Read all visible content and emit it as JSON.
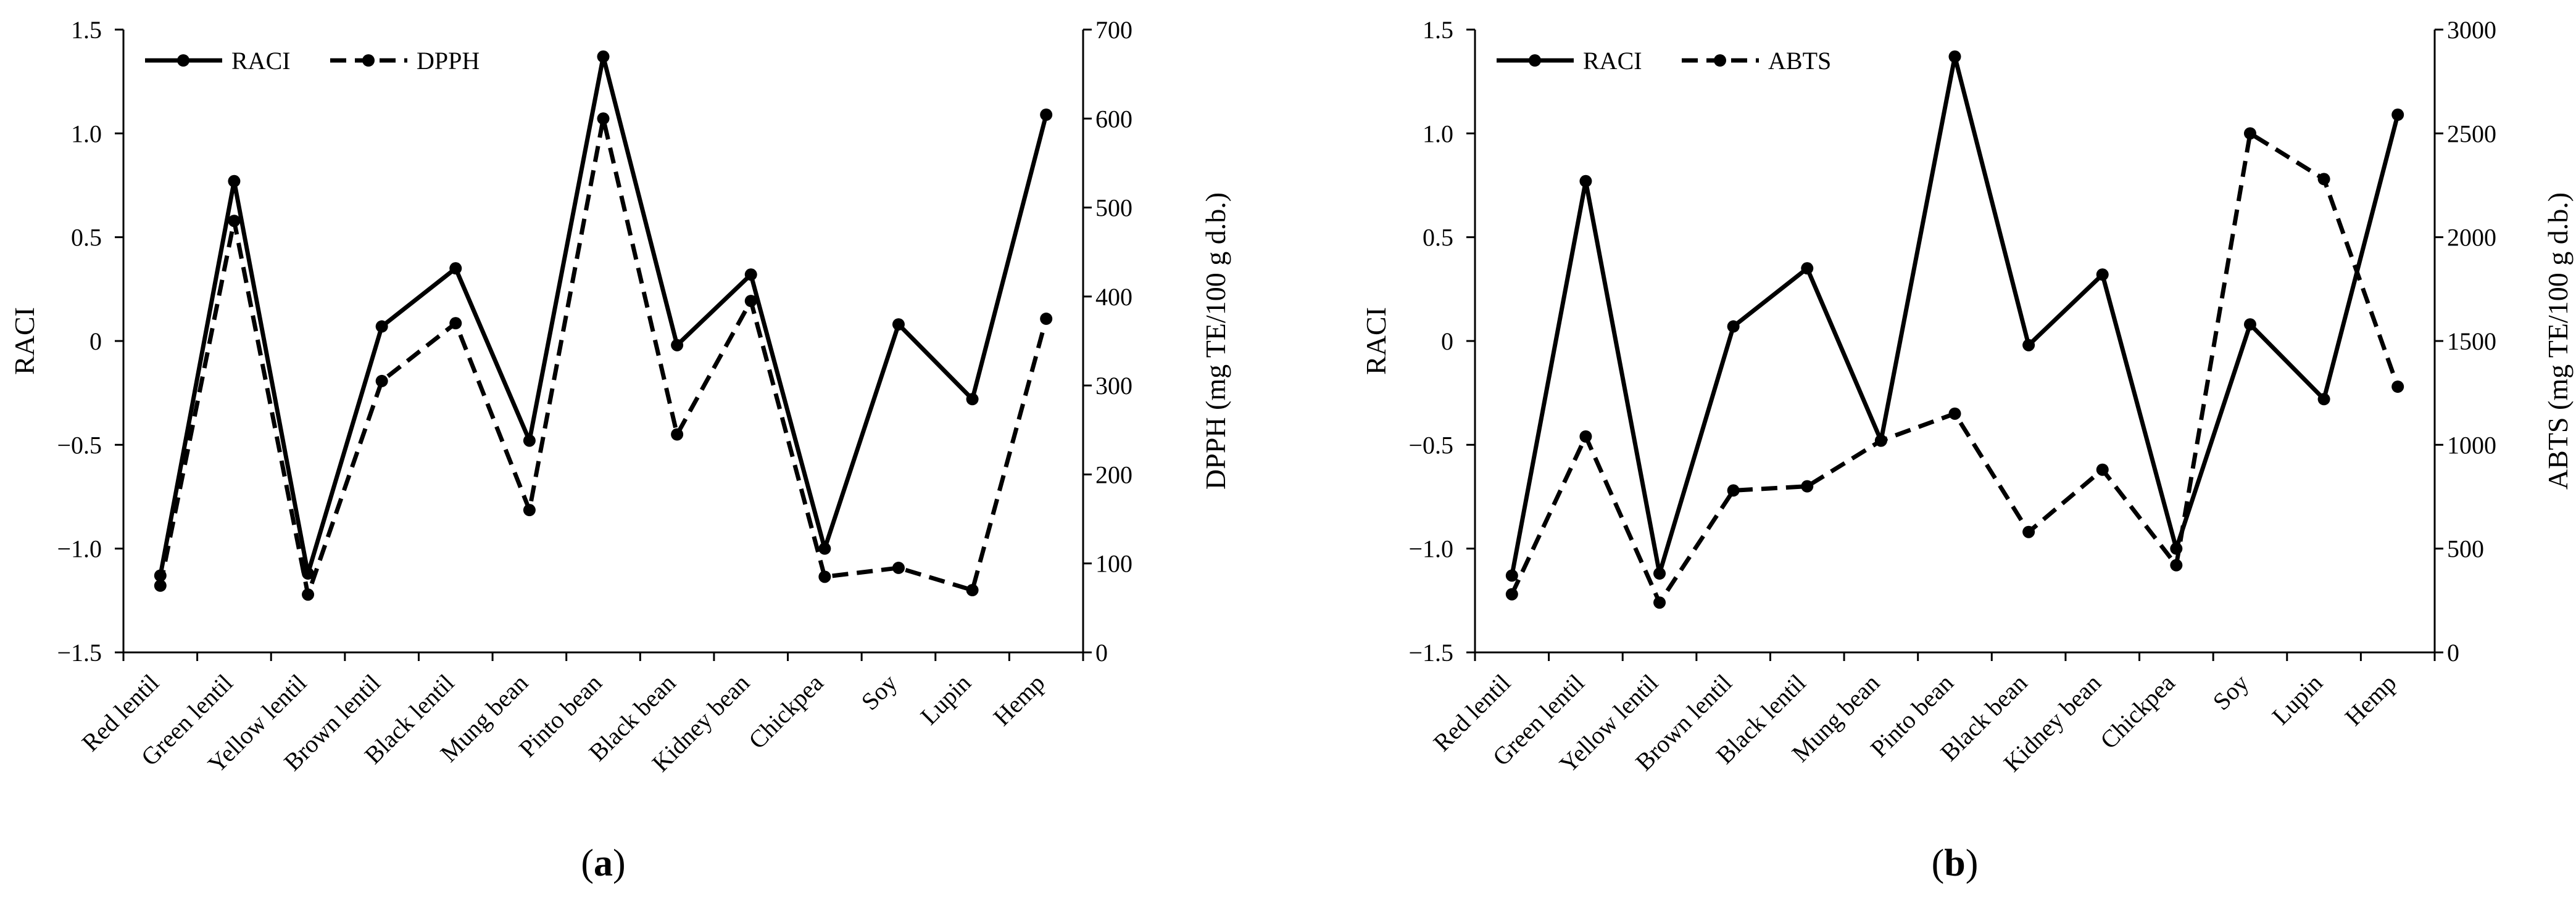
{
  "colors": {
    "series": "#000000",
    "background": "#ffffff"
  },
  "chart_data": [
    {
      "type": "line",
      "panel_label": "a",
      "categories": [
        "Red lentil",
        "Green lentil",
        "Yellow lentil",
        "Brown lentil",
        "Black lentil",
        "Mung bean",
        "Pinto bean",
        "Black bean",
        "Kidney bean",
        "Chickpea",
        "Soy",
        "Lupin",
        "Hemp"
      ],
      "series": [
        {
          "name": "RACI",
          "axis": "left",
          "line_style": "solid",
          "values": [
            -1.13,
            0.77,
            -1.12,
            0.07,
            0.35,
            -0.48,
            1.37,
            -0.02,
            0.32,
            -1.0,
            0.08,
            -0.28,
            1.09
          ]
        },
        {
          "name": "DPPH",
          "axis": "right",
          "line_style": "dashed",
          "values": [
            75,
            485,
            65,
            305,
            370,
            160,
            600,
            245,
            395,
            85,
            95,
            70,
            375
          ]
        }
      ],
      "ylabel_left": "RACI",
      "ylabel_right": "DPPH (mg TE/100 g d.b.)",
      "ylim_left": [
        -1.5,
        1.5
      ],
      "yticks_left": [
        "−1.5",
        "−1.0",
        "−0.5",
        "0",
        "0.5",
        "1.0",
        "1.5"
      ],
      "ylim_right": [
        0,
        700
      ],
      "yticks_right": [
        "0",
        "100",
        "200",
        "300",
        "400",
        "500",
        "600",
        "700"
      ],
      "legend_position": "top-left"
    },
    {
      "type": "line",
      "panel_label": "b",
      "categories": [
        "Red lentil",
        "Green lentil",
        "Yellow lentil",
        "Brown lentil",
        "Black lentil",
        "Mung bean",
        "Pinto bean",
        "Black bean",
        "Kidney bean",
        "Chickpea",
        "Soy",
        "Lupin",
        "Hemp"
      ],
      "series": [
        {
          "name": "RACI",
          "axis": "left",
          "line_style": "solid",
          "values": [
            -1.13,
            0.77,
            -1.12,
            0.07,
            0.35,
            -0.48,
            1.37,
            -0.02,
            0.32,
            -1.0,
            0.08,
            -0.28,
            1.09
          ]
        },
        {
          "name": "ABTS",
          "axis": "right",
          "line_style": "dashed",
          "values": [
            280,
            1040,
            240,
            780,
            800,
            1020,
            1150,
            580,
            880,
            420,
            2500,
            2280,
            1280
          ]
        }
      ],
      "ylabel_left": "RACI",
      "ylabel_right": "ABTS (mg TE/100 g d.b.)",
      "ylim_left": [
        -1.5,
        1.5
      ],
      "yticks_left": [
        "−1.5",
        "−1.0",
        "−0.5",
        "0",
        "0.5",
        "1.0",
        "1.5"
      ],
      "ylim_right": [
        0,
        3000
      ],
      "yticks_right": [
        "0",
        "500",
        "1000",
        "1500",
        "2000",
        "2500",
        "3000"
      ],
      "legend_position": "top-left"
    }
  ]
}
